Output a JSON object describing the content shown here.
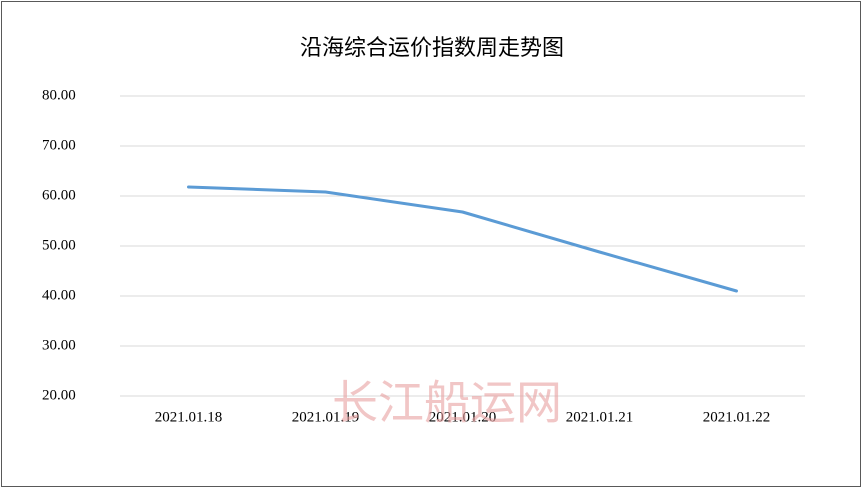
{
  "chart_data": {
    "type": "line",
    "title": "沿海综合运价指数周走势图",
    "categories": [
      "2021.01.18",
      "2021.01.19",
      "2021.01.20",
      "2021.01.21",
      "2021.01.22"
    ],
    "series": [
      {
        "name": "沿海综合运价指数",
        "color": "#5b9bd5",
        "values": [
          61.8,
          60.8,
          56.8,
          48.8,
          41.0
        ]
      }
    ],
    "ylim": [
      20,
      80
    ],
    "yticks": [
      {
        "value": 20,
        "label": "20.00"
      },
      {
        "value": 30,
        "label": "30.00"
      },
      {
        "value": 40,
        "label": "40.00"
      },
      {
        "value": 50,
        "label": "50.00"
      },
      {
        "value": 60,
        "label": "60.00"
      },
      {
        "value": 70,
        "label": "70.00"
      },
      {
        "value": 80,
        "label": "80.00"
      }
    ],
    "grid": true,
    "legend": false,
    "watermark": "长江船运网"
  }
}
